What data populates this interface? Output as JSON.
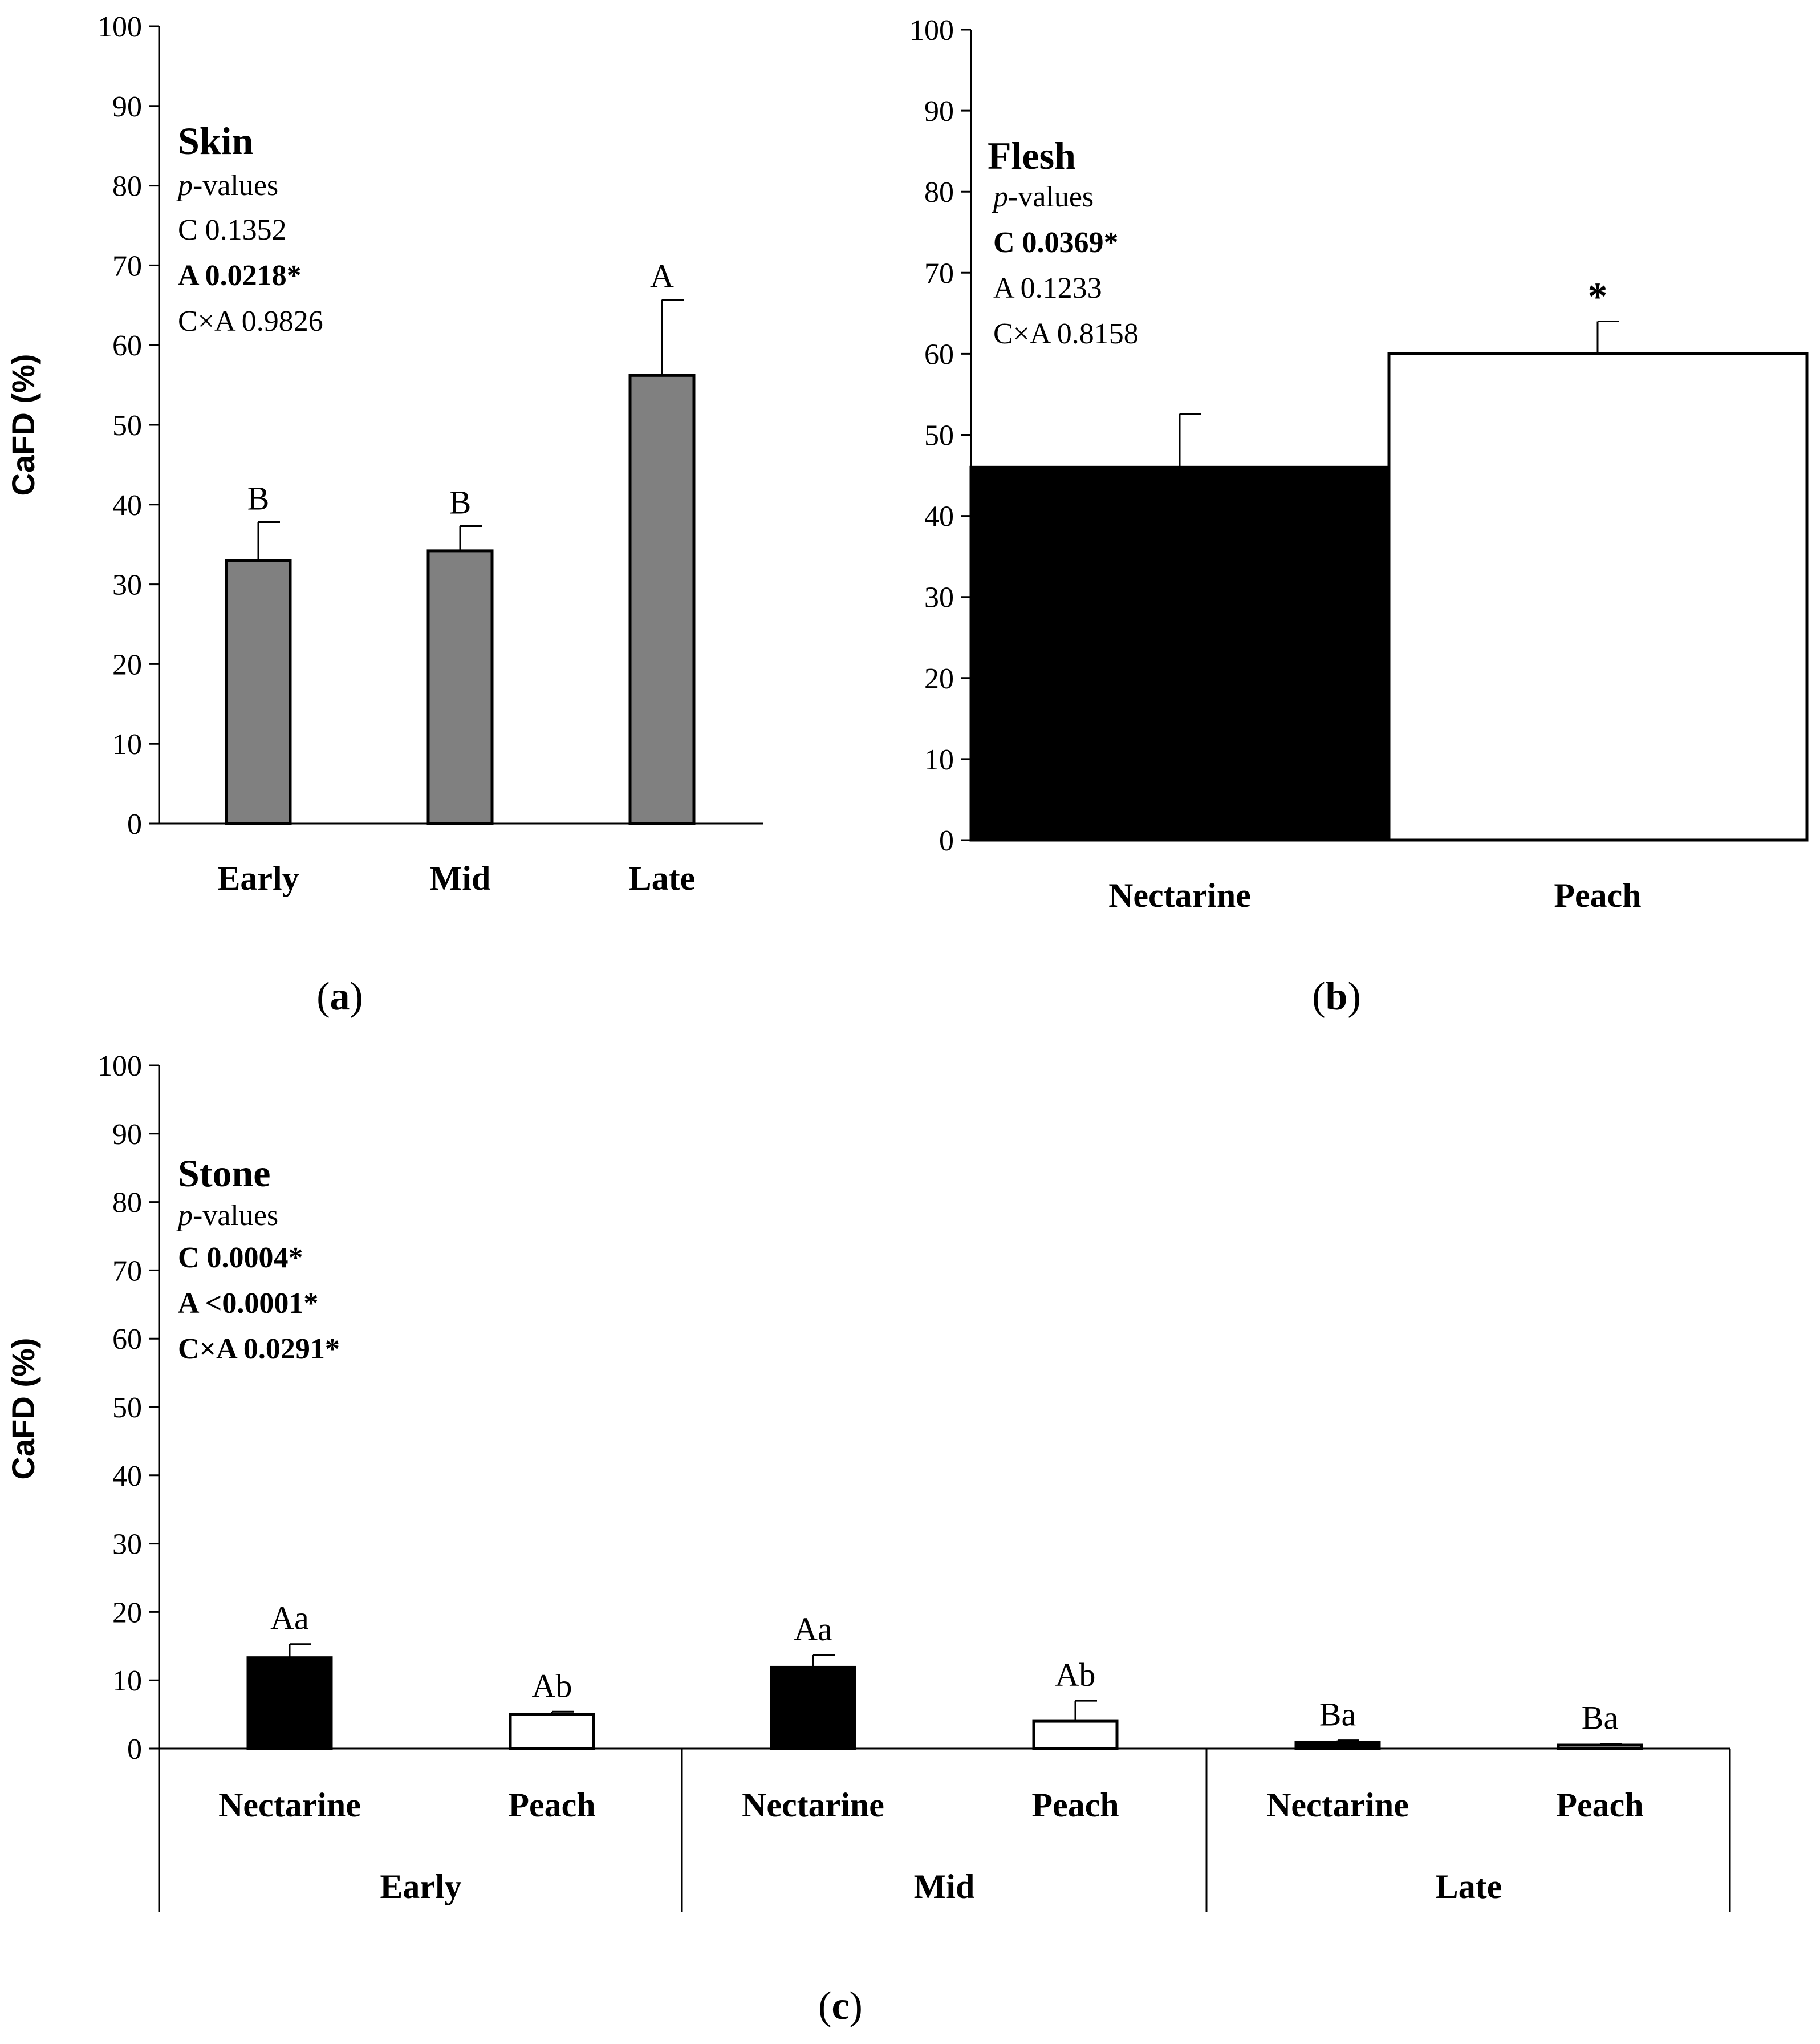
{
  "chart_data": [
    {
      "panel": "(a)",
      "type": "bar",
      "title": "Skin",
      "pvalues_label": "p-values",
      "pvalues": [
        {
          "text": "C 0.1352",
          "bold": false
        },
        {
          "text": "A 0.0218*",
          "bold": true
        },
        {
          "text": "C×A 0.9826",
          "bold": false
        }
      ],
      "ylabel": "CaFD (%)",
      "ylim": [
        0,
        100
      ],
      "yticks": [
        "0",
        "10",
        "20",
        "30",
        "40",
        "50",
        "60",
        "70",
        "80",
        "90",
        "100"
      ],
      "categories": [
        "Early",
        "Mid",
        "Late"
      ],
      "values": [
        33,
        34.2,
        56.2
      ],
      "errors": [
        4.8,
        3.1,
        9.5
      ],
      "letters": [
        "B",
        "B",
        "A"
      ],
      "bar_color": "#808080"
    },
    {
      "panel": "(b)",
      "type": "bar",
      "title": "Flesh",
      "pvalues_label": "p-values",
      "pvalues": [
        {
          "text": "C 0.0369*",
          "bold": true
        },
        {
          "text": "A 0.1233",
          "bold": false
        },
        {
          "text": "C×A 0.8158",
          "bold": false
        }
      ],
      "ylabel": "",
      "ylim": [
        0,
        100
      ],
      "yticks": [
        "0",
        "10",
        "20",
        "30",
        "40",
        "50",
        "60",
        "70",
        "80",
        "90",
        "100"
      ],
      "categories": [
        "Nectarine",
        "Peach"
      ],
      "values": [
        46,
        60
      ],
      "errors": [
        6.6,
        4
      ],
      "letters": [
        "",
        "*"
      ],
      "bar_colors": [
        "#000000",
        "#ffffff"
      ]
    },
    {
      "panel": "(c)",
      "type": "bar",
      "title": "Stone",
      "pvalues_label": "p-values",
      "pvalues": [
        {
          "text": "C 0.0004*",
          "bold": true
        },
        {
          "text": "A <0.0001*",
          "bold": true
        },
        {
          "text": "C×A 0.0291*",
          "bold": true
        }
      ],
      "ylabel": "CaFD (%)",
      "ylim": [
        0,
        100
      ],
      "yticks": [
        "0",
        "10",
        "20",
        "30",
        "40",
        "50",
        "60",
        "70",
        "80",
        "90",
        "100"
      ],
      "groups": [
        "Early",
        "Mid",
        "Late"
      ],
      "categories": [
        "Nectarine",
        "Peach",
        "Nectarine",
        "Peach",
        "Nectarine",
        "Peach"
      ],
      "values": [
        13.3,
        5,
        11.9,
        4,
        0.9,
        0.5
      ],
      "errors": [
        2,
        0.4,
        1.8,
        3,
        0.3,
        0.2
      ],
      "letters": [
        "Aa",
        "Ab",
        "Aa",
        "Ab",
        "Ba",
        "Ba"
      ],
      "bar_colors": [
        "#000000",
        "#ffffff",
        "#000000",
        "#ffffff",
        "#000000",
        "#ffffff"
      ]
    }
  ]
}
